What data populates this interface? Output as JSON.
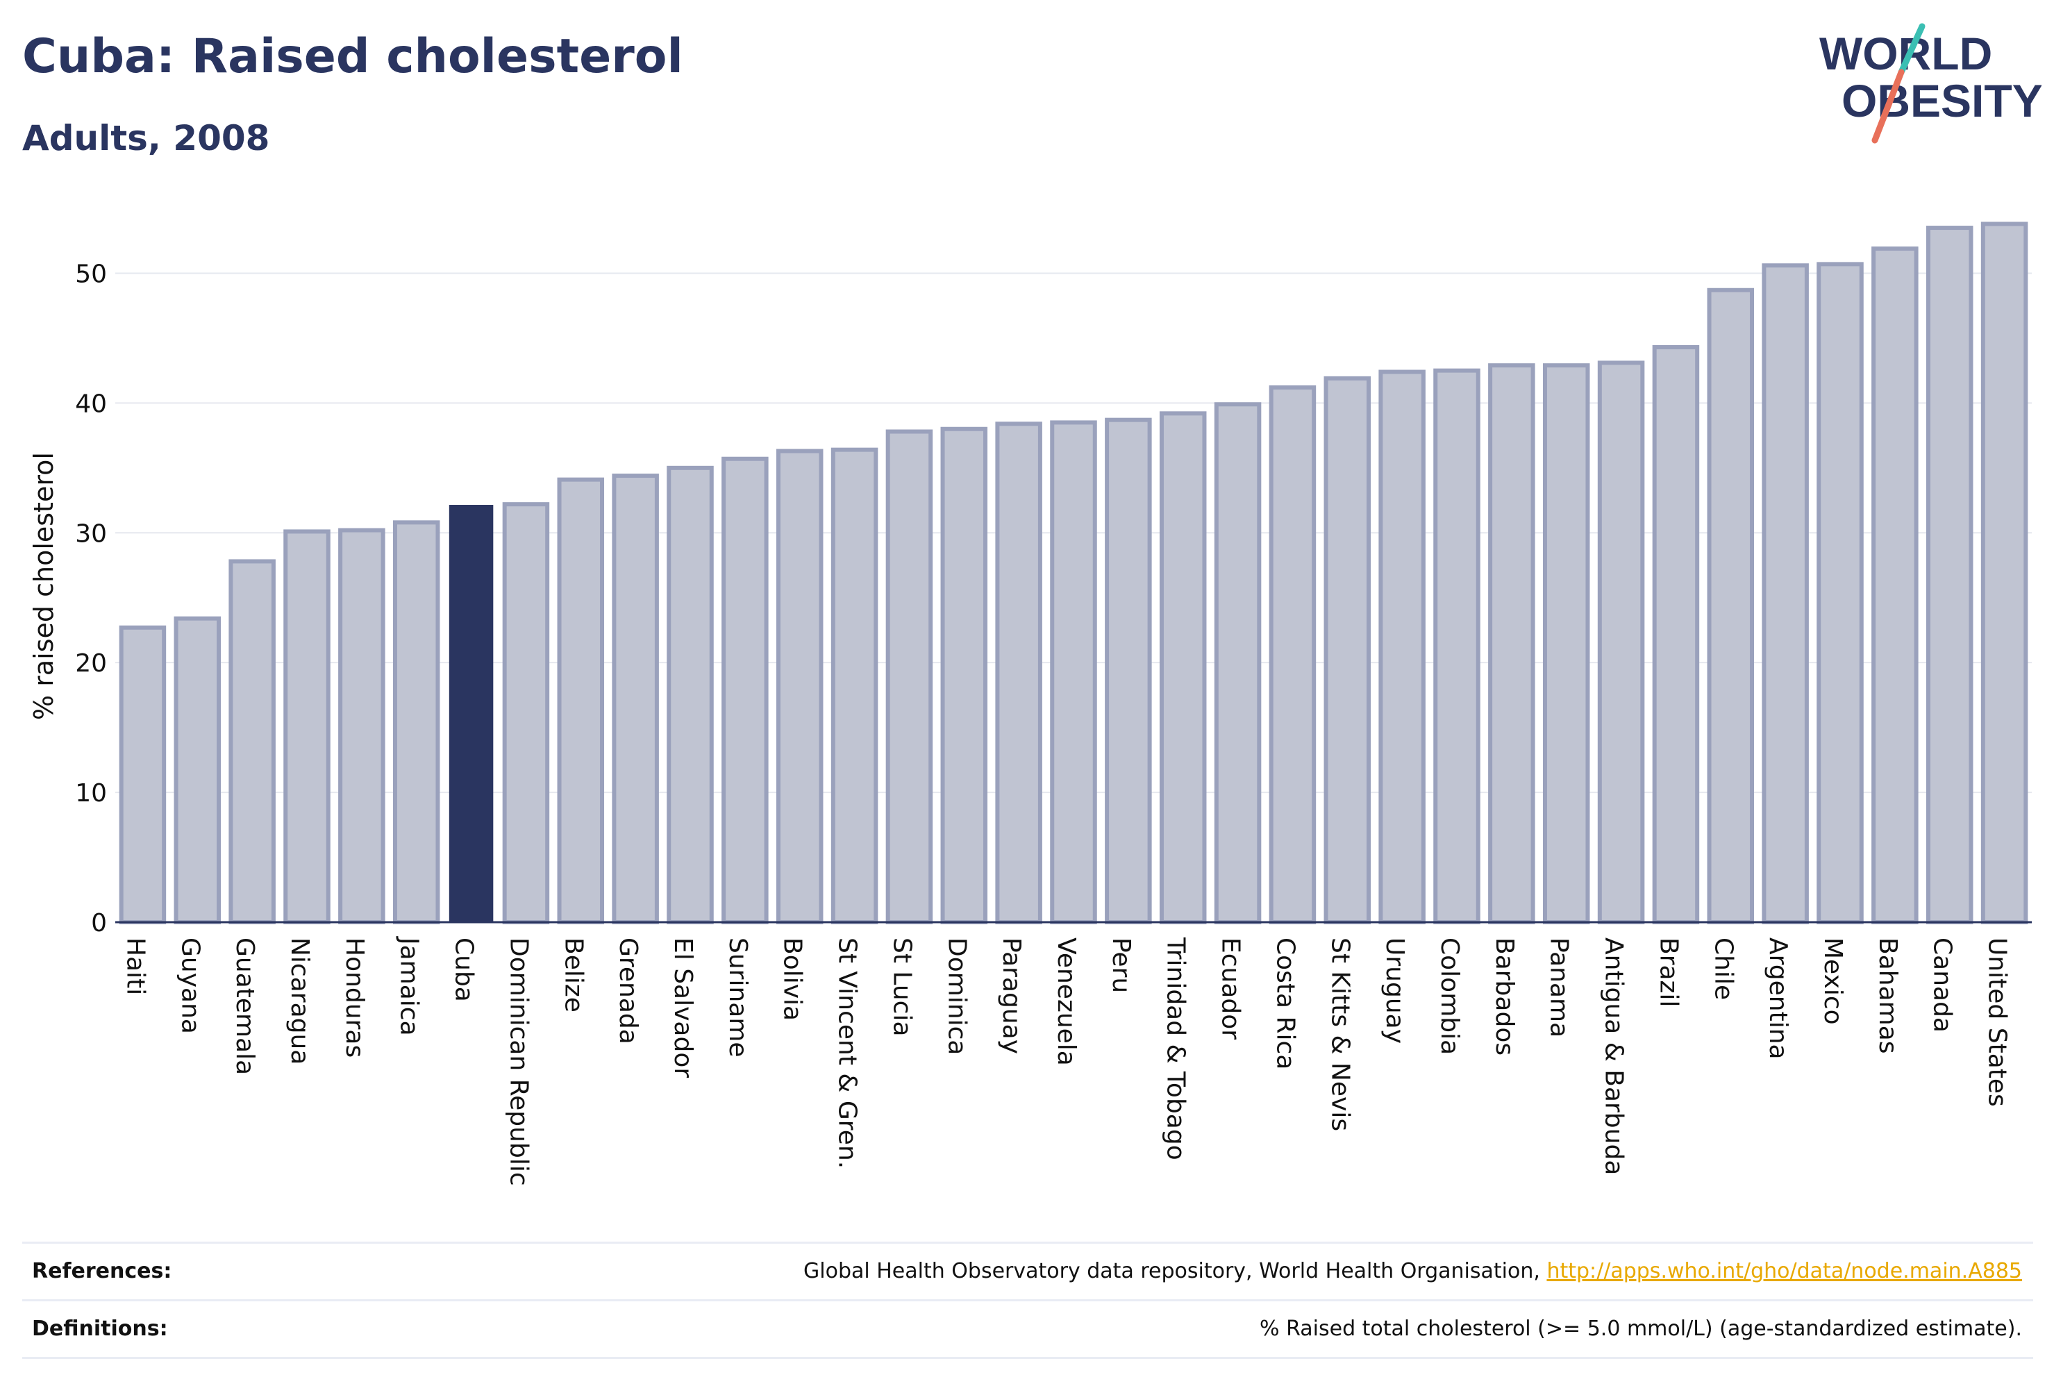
{
  "header": {
    "title": "Cuba: Raised cholesterol",
    "subtitle": "Adults, 2008"
  },
  "logo": {
    "line1": "WORLD",
    "line2": "OBESITY",
    "colors": {
      "text": "#2a3560",
      "slash_teal": "#3bbfb3",
      "slash_coral": "#e8705a"
    }
  },
  "chart_data": {
    "type": "bar",
    "ylabel": "% raised cholesterol",
    "xlabel": "",
    "ylim": [
      0,
      55
    ],
    "yticks": [
      0,
      10,
      20,
      30,
      40,
      50
    ],
    "grid": true,
    "highlight": "Cuba",
    "colors": {
      "bar": "#c0c4d2",
      "bar_edge": "#9aa1bc",
      "highlight": "#2a3560"
    },
    "categories": [
      "Haiti",
      "Guyana",
      "Guatemala",
      "Nicaragua",
      "Honduras",
      "Jamaica",
      "Cuba",
      "Dominican Republic",
      "Belize",
      "Grenada",
      "El Salvador",
      "Suriname",
      "Bolivia",
      "St Vincent & Gren.",
      "St Lucia",
      "Dominica",
      "Paraguay",
      "Venezuela",
      "Peru",
      "Trinidad & Tobago",
      "Ecuador",
      "Costa Rica",
      "St Kitts & Nevis",
      "Uruguay",
      "Colombia",
      "Barbados",
      "Panama",
      "Antigua & Barbuda",
      "Brazil",
      "Chile",
      "Argentina",
      "Mexico",
      "Bahamas",
      "Canada",
      "United States"
    ],
    "values": [
      22.7,
      23.4,
      27.8,
      30.1,
      30.2,
      30.8,
      32.1,
      32.2,
      34.1,
      34.4,
      35.0,
      35.7,
      36.3,
      36.4,
      37.8,
      38.0,
      38.4,
      38.5,
      38.7,
      39.2,
      39.9,
      41.2,
      41.9,
      42.4,
      42.5,
      42.9,
      42.9,
      43.1,
      44.3,
      48.7,
      50.6,
      50.7,
      51.9,
      53.5,
      53.8
    ]
  },
  "footer": {
    "references_label": "References:",
    "references_text": "Global Health Observatory data repository, World Health Organisation, ",
    "references_link": "http://apps.who.int/gho/data/node.main.A885",
    "definitions_label": "Definitions:",
    "definitions_text": "% Raised total cholesterol (>= 5.0 mmol/L) (age-standardized estimate)."
  }
}
